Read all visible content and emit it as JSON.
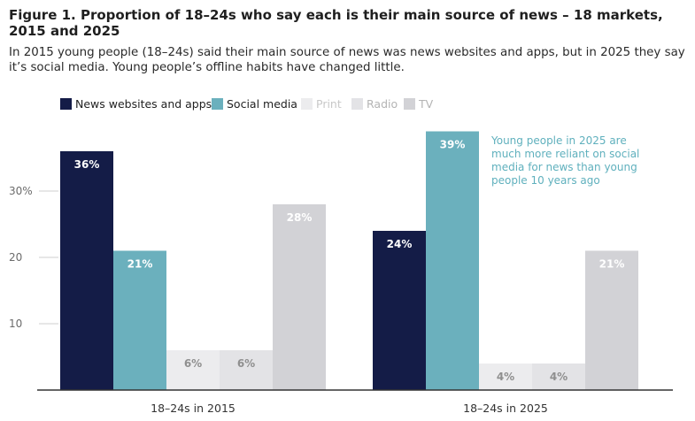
{
  "figure": {
    "title": "Figure 1. Proportion of 18–24s who say each is their main source of news – 18 markets, 2015 and 2025",
    "subtitle": "In 2015 young people (18–24s) said their main source of news was news websites and apps, but in 2025 they say it’s social media. Young people’s offline habits have changed little."
  },
  "chart_data": {
    "type": "bar",
    "title": "Figure 1. Proportion of 18–24s who say each is their main source of news – 18 markets, 2015 and 2025",
    "subtitle": "In 2015 young people (18–24s) said their main source of news was news websites and apps, but in 2025 they say it’s social media. Young people’s offline habits have changed little.",
    "categories": [
      "18–24s in 2015",
      "18–24s in 2025"
    ],
    "series": [
      {
        "name": "News websites and apps",
        "values": [
          36,
          24
        ],
        "labels": [
          "36%",
          "24%"
        ],
        "color": "#141c47",
        "label_color": "#ffffff",
        "legend_text_color": "#222222"
      },
      {
        "name": "Social media",
        "values": [
          21,
          39
        ],
        "labels": [
          "21%",
          "39%"
        ],
        "color": "#6bb0bd",
        "label_color": "#ffffff",
        "legend_text_color": "#222222"
      },
      {
        "name": "Print",
        "values": [
          6,
          4
        ],
        "labels": [
          "6%",
          "4%"
        ],
        "color": "#ececee",
        "label_color": "#8f8f8f",
        "legend_text_color": "#c8c8c8"
      },
      {
        "name": "Radio",
        "values": [
          6,
          4
        ],
        "labels": [
          "6%",
          "4%"
        ],
        "color": "#e3e3e6",
        "label_color": "#8f8f8f",
        "legend_text_color": "#b4b4b4"
      },
      {
        "name": "TV",
        "values": [
          28,
          21
        ],
        "labels": [
          "28%",
          "21%"
        ],
        "color": "#d2d2d6",
        "label_color": "#ffffff",
        "legend_text_color": "#b4b4b4"
      }
    ],
    "y_ticks": [
      {
        "value": 10,
        "label": "10"
      },
      {
        "value": 20,
        "label": "20"
      },
      {
        "value": 30,
        "label": "30%"
      }
    ],
    "ylim": [
      0,
      40
    ],
    "grid": false,
    "legend_position": "top-left",
    "annotation": {
      "lines": [
        "Young people in 2025 are",
        "much more reliant on social",
        "media for news than young",
        "people 10 years ago"
      ],
      "color": "#5fb0bd"
    }
  }
}
